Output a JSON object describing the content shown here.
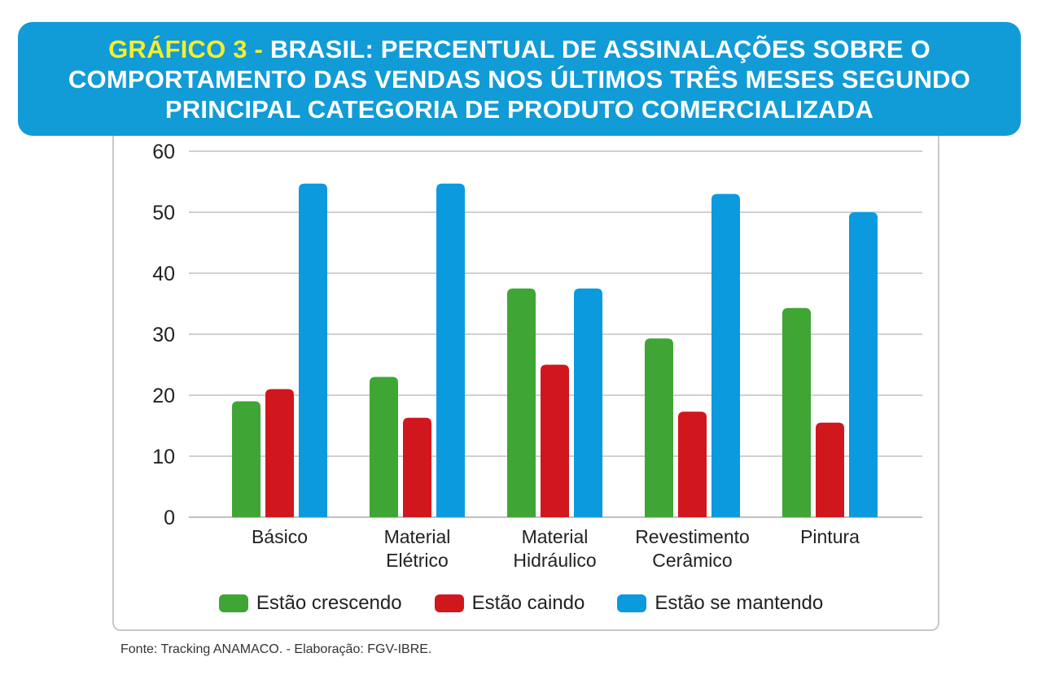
{
  "title": {
    "prefix": "GRÁFICO 3 - ",
    "main": "BRASIL: PERCENTUAL DE ASSINALAÇÕES SOBRE O COMPORTAMENTO DAS VENDAS NOS ÚLTIMOS TRÊS MESES SEGUNDO PRINCIPAL CATEGORIA DE PRODUTO COMERCIALIZADA"
  },
  "source": "Fonte: Tracking ANAMACO. - Elaboração: FGV-IBRE.",
  "colors": {
    "banner": "#119bd7",
    "prefix": "#f5ee2c",
    "grid": "#b5b5b5",
    "growing": "#3fa535",
    "falling": "#d0171d",
    "stable": "#0c9ade"
  },
  "chart_data": {
    "type": "bar",
    "categories": [
      [
        "Básico"
      ],
      [
        "Material",
        "Elétrico"
      ],
      [
        "Material",
        "Hidráulico"
      ],
      [
        "Revestimento",
        "Cerâmico"
      ],
      [
        "Pintura"
      ]
    ],
    "series": [
      {
        "name": "Estão crescendo",
        "color": "#3fa535",
        "values": [
          19,
          23,
          37.5,
          29.3,
          34.3
        ]
      },
      {
        "name": "Estão caindo",
        "color": "#d0171d",
        "values": [
          21,
          16.3,
          25,
          17.3,
          15.5
        ]
      },
      {
        "name": "Estão se mantendo",
        "color": "#0c9ade",
        "values": [
          54.7,
          54.7,
          37.5,
          53,
          50
        ]
      }
    ],
    "ylim": [
      0,
      60
    ],
    "yticks": [
      0,
      10,
      20,
      30,
      40,
      50,
      60
    ],
    "grid": true,
    "legend": "bottom"
  }
}
